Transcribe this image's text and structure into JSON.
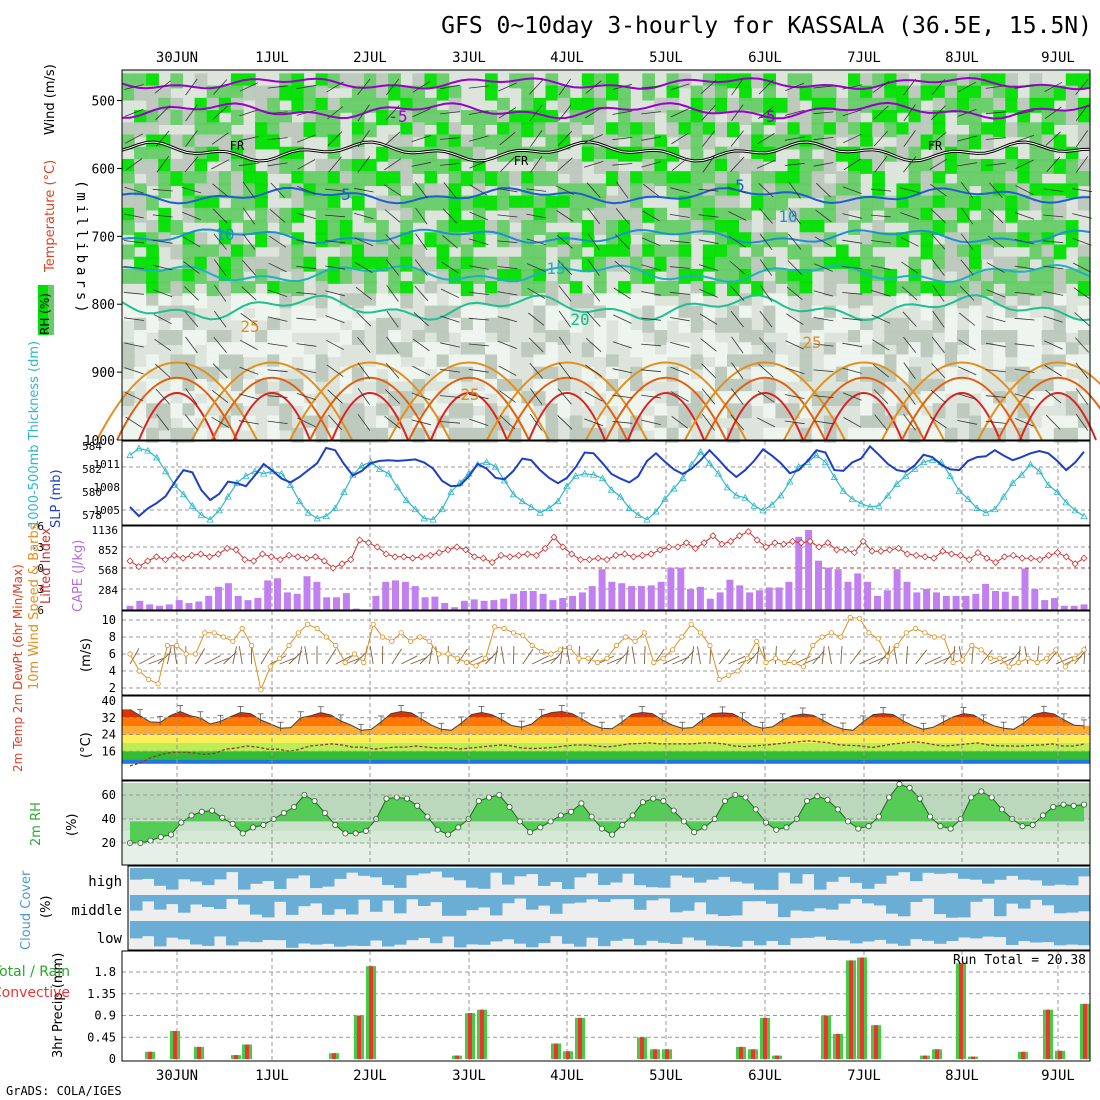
{
  "title": "GFS 0~10day 3-hourly for KASSALA (36.5E, 15.5N)",
  "credit": "GrADS: COLA/IGES",
  "date_labels": [
    "30JUN",
    "1JUL",
    "2JUL",
    "3JUL",
    "4JUL",
    "5JUL",
    "6JUL",
    "7JUL",
    "8JUL",
    "9JUL"
  ],
  "colors": {
    "rh_dark": "#00e000",
    "rh_mid": "#66cc66",
    "rh_light": "#a8d8a8",
    "gray_dark": "#bcc8bc",
    "gray_light": "#dce4dc",
    "pale": "#eef4ee",
    "freezing": "#000000",
    "t_m5": "#9900cc",
    "t_p5": "#1e5fd0",
    "t_p10": "#1e90d0",
    "t_p15": "#20b0c0",
    "t_p20": "#20c090",
    "t_p25": "#e09020",
    "t_p30": "#e06010",
    "t_p35": "#dd2222",
    "slp": "#1d3fc8",
    "thickness": "#30b8c8",
    "cape_bar": "#c080f0",
    "lifted": "#cc3333",
    "wind_speed": "#e09020",
    "barb": "#806040",
    "temp_max": "#cc0000",
    "rh2m_fill": "#55cc55",
    "cloud": "#6aaed6",
    "cloud_bg": "#dddddd",
    "precip_total": "#44cc44",
    "precip_conv": "#ee3333"
  },
  "panels": {
    "upper": {
      "yaxis_title": "(millibars)",
      "side_labels": [
        "RH (%)",
        "Temperature (°C)",
        "Wind (m/s)"
      ],
      "pressure_ticks": [
        "500",
        "600",
        "700",
        "800",
        "900",
        "1000"
      ],
      "contour_labels": [
        "-5",
        "FR",
        "5",
        "10",
        "15",
        "20",
        "25",
        "25",
        "-5",
        "FR",
        "5",
        "10",
        "20",
        "25",
        "25",
        "FR"
      ]
    },
    "thickness_slp": {
      "left_label": "1000-500mb Thickness (dm)",
      "right_label": "SLP (mb)",
      "left_ticks": [
        "584",
        "582",
        "580",
        "578"
      ],
      "right_ticks": [
        "1011",
        "1008",
        "1005"
      ]
    },
    "cape_li": {
      "left_label": "Lifted Index",
      "right_label": "CAPE (J/kg)",
      "left_ticks": [
        "-6",
        "-3",
        "0",
        "3",
        "6"
      ],
      "right_ticks": [
        "1136",
        "852",
        "568",
        "284"
      ]
    },
    "wind10m": {
      "label": "10m Wind Speed & Barbs",
      "unit": "(m/s)",
      "ticks": [
        "10",
        "8",
        "6",
        "4",
        "2"
      ]
    },
    "temp2m": {
      "label": "2m Temp 2m DewPt (6hr Min/Max)",
      "unit": "(°C)",
      "ticks": [
        "40",
        "32",
        "24",
        "16"
      ]
    },
    "rh2m": {
      "label": "2m RH",
      "unit": "(%)",
      "ticks": [
        "60",
        "40",
        "20"
      ]
    },
    "cloud": {
      "label": "Cloud Cover",
      "unit": "(%)",
      "levels": [
        "high",
        "middle",
        "low"
      ]
    },
    "precip": {
      "label": "3hr Precip (mm)",
      "legend_total": "Total / Rain",
      "legend_conv": "Convective",
      "run_total": "Run Total = 20.38",
      "ticks": [
        "1.8",
        "1.35",
        "0.9",
        "0.45",
        "0"
      ]
    }
  },
  "chart_data": {
    "type": "meteogram",
    "title": "GFS 0~10day 3-hourly for KASSALA (36.5E, 15.5N)",
    "x_dates": [
      "30JUN",
      "1JUL",
      "2JUL",
      "3JUL",
      "4JUL",
      "5JUL",
      "6JUL",
      "7JUL",
      "8JUL",
      "9JUL"
    ],
    "step_hours": 3,
    "thickness_dm": [
      583.2,
      583.8,
      583.6,
      583,
      581.8,
      580.6,
      579.8,
      578.8,
      578,
      577.6,
      578.4,
      579.6,
      580.8,
      581.4,
      581.8,
      581.6,
      581.8,
      581.6,
      580.6,
      579.2,
      578.2,
      577.7,
      577.9,
      578.6,
      580,
      581.5,
      582.3,
      582.6,
      582,
      581.6,
      580.4,
      579.3,
      578.5,
      577.7,
      577.6,
      578.5,
      580,
      580.8,
      581.6,
      582.4,
      582.6,
      582.2,
      581,
      579.8,
      579.2,
      578.7,
      578.2,
      578.6,
      579.2,
      580.5,
      581.4,
      581.6,
      581.5,
      581.2,
      580.2,
      579.6,
      578.6,
      578,
      577.6,
      578.3,
      579.4,
      580.3,
      581.2,
      582.4,
      583.5,
      582.5,
      581.6,
      580.4,
      579.7,
      579.5,
      578.8,
      578.4,
      578.9,
      579.7,
      580.9,
      582.2,
      582.6,
      583.2,
      582.6,
      581.3,
      580.1,
      579.4,
      579,
      578.7,
      578.8,
      579.7,
      580.7,
      581.4,
      582,
      582.6,
      582.8,
      582.6,
      581.4,
      580.1,
      579.4,
      578.6,
      578.2,
      578.5,
      579.6,
      580.8,
      581.5,
      582.4,
      581.8,
      580.6,
      580,
      579.1,
      578.4,
      577.9
    ],
    "slp_mb": [
      1005.4,
      1004.2,
      1005.2,
      1005.9,
      1006.8,
      1008.6,
      1010.2,
      1009.9,
      1007.6,
      1006.3,
      1007.1,
      1008.7,
      1008.5,
      1008.1,
      1009.5,
      1011,
      1010.1,
      1009.1,
      1008.6,
      1009.3,
      1010.2,
      1011.1,
      1013.1,
      1012.8,
      1011,
      1009.5,
      1010.1,
      1011.1,
      1011.4,
      1011.5,
      1011.4,
      1011.5,
      1011.6,
      1011.2,
      1010.4,
      1008.8,
      1008.1,
      1008.2,
      1009.4,
      1011,
      1010.4,
      1009.2,
      1009,
      1010.1,
      1011.7,
      1011.5,
      1010.2,
      1009.2,
      1008.5,
      1009.2,
      1010.6,
      1012.5,
      1012.4,
      1011.1,
      1009.7,
      1009.1,
      1008.6,
      1009.4,
      1011.4,
      1012.4,
      1011.3,
      1010.3,
      1009.7,
      1010.4,
      1011.5,
      1012.8,
      1011.6,
      1010.3,
      1009.3,
      1010.2,
      1011.4,
      1012.9,
      1012.1,
      1011.1,
      1009.8,
      1010.2,
      1011.4,
      1012.8,
      1012.5,
      1010.2,
      1010.1,
      1011.2,
      1011.7,
      1013.3,
      1012.2,
      1011,
      1010.2,
      1010,
      1010.8,
      1012.2,
      1011.9,
      1010.9,
      1010.3,
      1010.2,
      1011.4,
      1011.9,
      1012,
      1012.8,
      1012.1,
      1011.5,
      1011.9,
      1012.4,
      1012.7,
      1012.4,
      1011.4,
      1010.2,
      1011.2,
      1012.6
    ],
    "cape_jkg": [
      60,
      130,
      80,
      60,
      80,
      140,
      100,
      120,
      200,
      330,
      380,
      200,
      140,
      170,
      420,
      450,
      250,
      230,
      480,
      400,
      180,
      180,
      240,
      20,
      0,
      200,
      400,
      420,
      400,
      340,
      180,
      190,
      100,
      40,
      130,
      150,
      130,
      140,
      160,
      230,
      270,
      270,
      230,
      140,
      170,
      200,
      250,
      340,
      580,
      400,
      380,
      340,
      340,
      350,
      400,
      600,
      600,
      300,
      330,
      160,
      250,
      430,
      350,
      250,
      280,
      320,
      320,
      400,
      1040,
      1136,
      700,
      600,
      580,
      400,
      520,
      400,
      200,
      280,
      580,
      400,
      250,
      300,
      250,
      200,
      200,
      200,
      230,
      370,
      270,
      260,
      200,
      590,
      300,
      140,
      170,
      60,
      60,
      80
    ],
    "lifted_index": [
      -1,
      -0.2,
      -1,
      -1.6,
      -1.2,
      -1.8,
      -1.4,
      -1.8,
      -2,
      -1.6,
      -2,
      -2.8,
      -2.6,
      -1.2,
      -1,
      -2,
      -1.6,
      -1.2,
      -1.8,
      -1.6,
      -1.4,
      -1.6,
      -1,
      0,
      -0.6,
      -1.2,
      -4,
      -3.6,
      -3,
      -2,
      -1.6,
      -1.6,
      -1.4,
      -1.6,
      -1.8,
      -2.2,
      -2.6,
      -3,
      -2.6,
      -1.6,
      -1.4,
      -0.8,
      -1.8,
      -1.6,
      -1.8,
      -2,
      -1.8,
      -2.8,
      -4.4,
      -3,
      -2,
      -1.2,
      -1.2,
      -1.4,
      -1.2,
      -1.8,
      -2,
      -1.6,
      -1.8,
      -2,
      -2.6,
      -3,
      -3,
      -3.6,
      -2.8,
      -3.6,
      -4.6,
      -3.4,
      -3.8,
      -4.6,
      -5.2,
      -4,
      -3,
      -3.6,
      -3.4,
      -3.8,
      -3.6,
      -3.8,
      -3,
      -3.6,
      -2.6,
      -2.6,
      -2.2,
      -3.8,
      -2.4,
      -2.4,
      -2.6,
      -2.8,
      -2,
      -1.8,
      -1.6,
      -1.4,
      -2.4,
      -2,
      -1.8,
      -1.2,
      -2.2,
      -1.4,
      -0.8,
      -1.6,
      -1.8,
      -1.4,
      -1.4,
      -1.2,
      -1.8,
      -2.2,
      -1.6,
      -0.6,
      -1.4
    ],
    "wind10m_speed_ms": [
      6,
      4,
      3,
      2.5,
      7,
      7,
      6,
      6,
      8.5,
      8.5,
      8,
      7.5,
      9,
      7,
      1.8,
      4.5,
      5.5,
      7,
      8.5,
      9.5,
      9,
      8,
      7,
      5,
      6,
      5,
      9.5,
      8,
      7.5,
      8.5,
      7.5,
      8,
      7.5,
      6,
      6,
      5.5,
      5,
      4.6,
      5.5,
      9.2,
      9,
      8.5,
      8.2,
      7,
      6.3,
      6,
      6.5,
      6.8,
      5.5,
      5.5,
      5,
      5.5,
      7,
      8,
      7.5,
      8.5,
      5,
      5.5,
      6.5,
      8,
      9.5,
      8.5,
      7,
      3,
      3.5,
      4,
      5.5,
      7.5,
      5,
      5.5,
      5,
      5,
      4.5,
      7,
      8,
      8.5,
      8,
      10.3,
      10.2,
      8.5,
      7.8,
      5.7,
      7,
      8.5,
      9,
      8.5,
      8,
      8,
      5,
      5.3,
      7,
      6.5,
      5.5,
      5.5,
      4.5,
      5,
      5.5,
      5,
      5.5,
      6.5,
      4.5,
      5.5,
      6.5
    ],
    "temp2m_c": [
      36,
      33,
      30,
      29.8,
      33,
      35,
      33,
      32,
      29,
      30.3,
      32.5,
      34.5,
      34,
      31,
      29,
      27,
      27.3,
      32,
      33,
      34.4,
      33.3,
      30.5,
      28.5,
      26,
      26.4,
      30,
      34,
      35,
      34.3,
      31.5,
      28.5,
      26.5,
      26,
      29.5,
      33.5,
      34.5,
      33.5,
      31.2,
      28.3,
      27.5,
      29,
      33,
      34.5,
      35,
      34,
      31.4,
      28.6,
      27,
      26.7,
      30,
      33.7,
      34.5,
      34,
      31,
      28.5,
      27,
      27.3,
      31,
      34,
      34.3,
      34,
      31.5,
      28.2,
      27,
      27.7,
      31,
      33,
      33.8,
      33.2,
      30.8,
      28.2,
      26.6,
      26,
      30,
      33.5,
      34,
      33.5,
      30.5,
      28.1,
      26.5,
      27.5,
      30,
      32.5,
      34,
      33.3,
      30.5,
      28.2,
      27,
      26.5,
      29.5,
      33.5,
      34.6,
      33.8,
      31,
      28.5,
      28.1
    ],
    "dewpt2m_c": [
      9,
      10.5,
      13,
      14.5,
      15.6,
      15.6,
      15.2,
      14.5,
      15,
      17,
      17.5,
      18.5,
      18,
      17,
      17,
      16,
      17,
      18.5,
      19,
      19.5,
      19,
      18,
      18,
      17,
      17.5,
      18,
      18,
      18.5,
      18,
      17.5,
      17.8,
      17,
      17.5,
      18,
      18.5,
      19,
      18.5,
      17.5,
      17.3,
      17.5,
      17.9,
      18.5,
      19,
      19,
      18.5,
      18.1,
      18.6,
      19.5,
      19.7,
      20,
      19.5,
      19.5,
      19.5,
      19.5,
      20,
      20,
      19.5,
      18.5,
      18.2,
      18.6,
      19,
      19.5,
      20,
      20.5,
      21,
      20.5,
      20,
      19,
      18.8,
      18.5,
      17.8,
      18.6,
      19.5,
      20,
      20.5,
      20,
      19,
      18.5,
      19,
      19.5,
      20,
      19,
      18.6,
      18.5,
      18.4,
      18.8,
      19,
      19.5,
      18.5,
      18.5,
      19.4
    ],
    "rh2m_pct": [
      20,
      20,
      22,
      25,
      27,
      37,
      43,
      46,
      47,
      41,
      36,
      28,
      33,
      35,
      40,
      45,
      50,
      60,
      55,
      45,
      35,
      28,
      28,
      30,
      40,
      57,
      58,
      57,
      51,
      42,
      31,
      27,
      33,
      40,
      55,
      58,
      60,
      50,
      38,
      29,
      33,
      38,
      43,
      46,
      53,
      42,
      32,
      27,
      35,
      43,
      54,
      57,
      55,
      47,
      38,
      29,
      33,
      40,
      55,
      60,
      58,
      48,
      37,
      31,
      33,
      40,
      55,
      59,
      56,
      48,
      38,
      32,
      34,
      42,
      58,
      69,
      66,
      57,
      42,
      34,
      32,
      40,
      58,
      63,
      58,
      48,
      40,
      34,
      35,
      43,
      50,
      52,
      51,
      52
    ]
  }
}
